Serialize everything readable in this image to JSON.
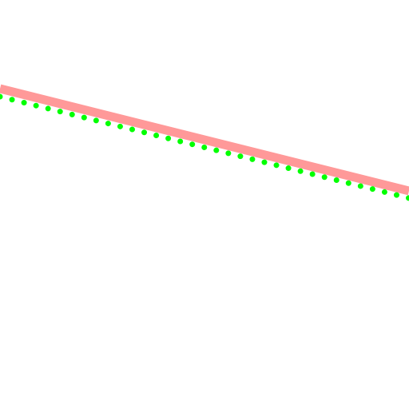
{
  "colors": {
    "background": "#ffffff",
    "thick_line": "#ff9999",
    "dotted_line": "#00ff00"
  },
  "lines": [
    {
      "id": "salmon-line",
      "style": "solid-thick"
    },
    {
      "id": "green-dotted-line",
      "style": "dotted"
    }
  ]
}
